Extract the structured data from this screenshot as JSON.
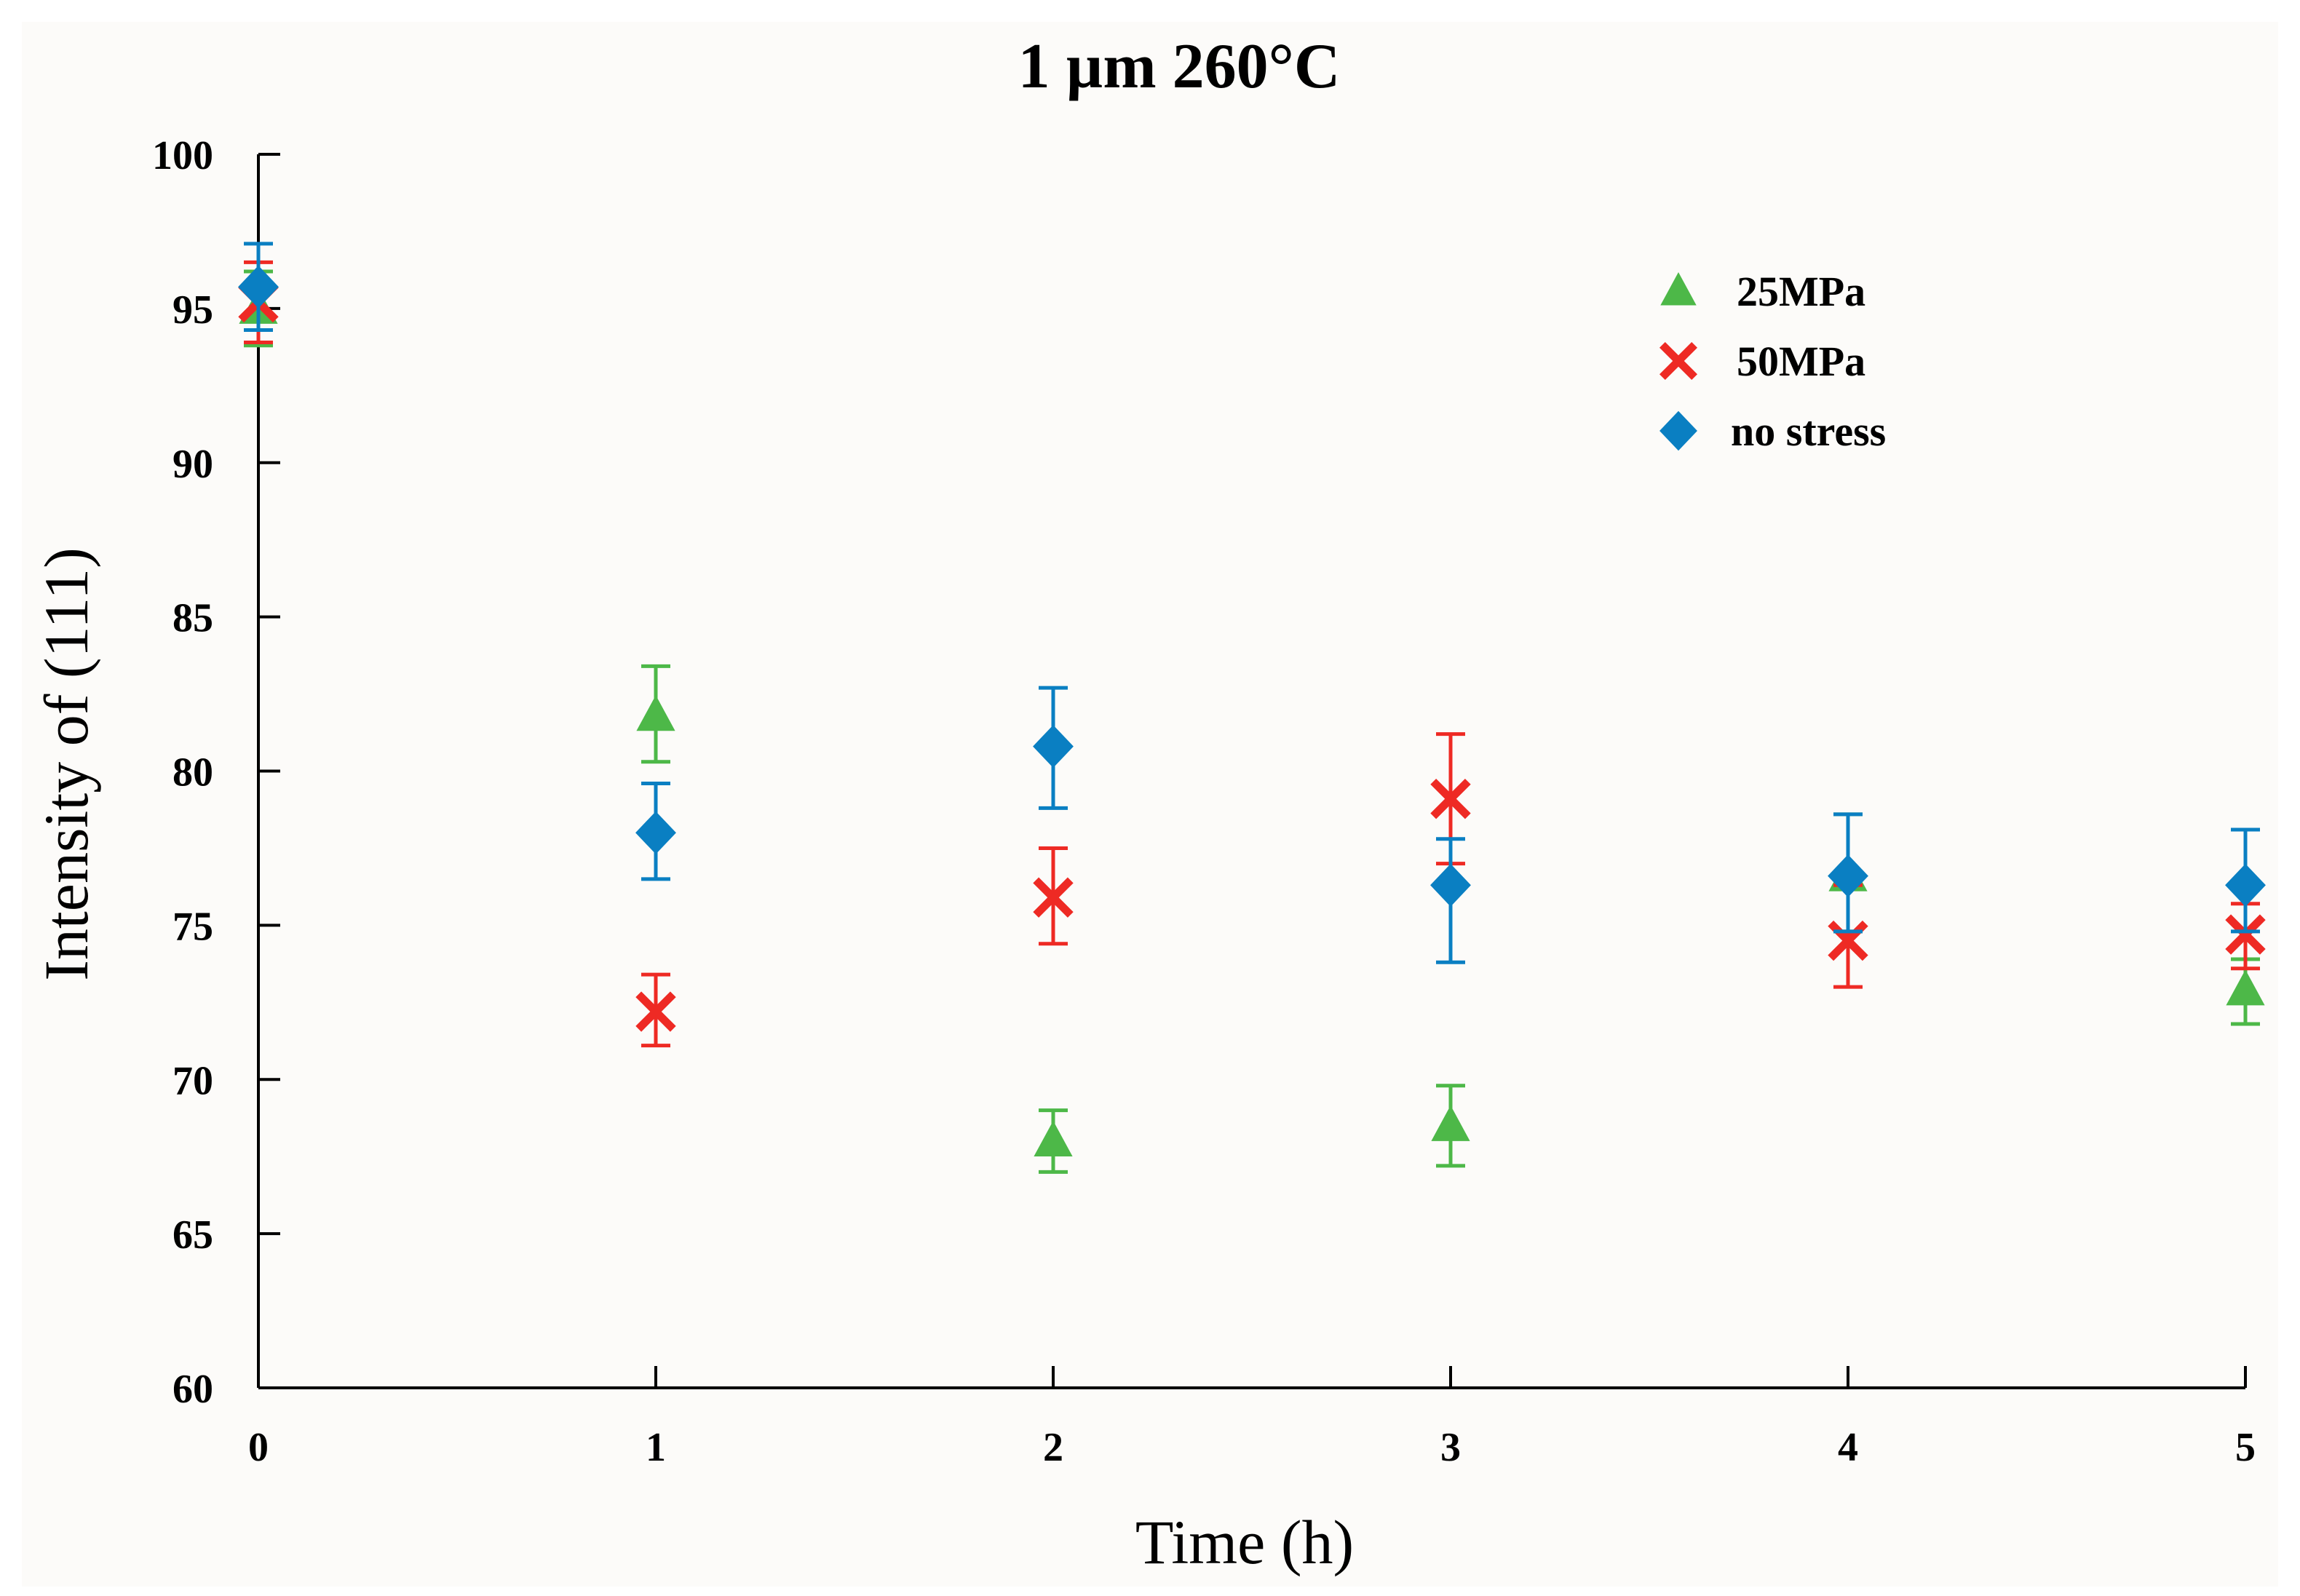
{
  "chart_data": {
    "type": "scatter",
    "title": "1 µm 260°C",
    "xlabel": "Time (h)",
    "ylabel": "Intensity of (111)",
    "xlim": [
      0,
      5
    ],
    "ylim": [
      60,
      100
    ],
    "xticks": [
      "0",
      "1",
      "2",
      "3",
      "4",
      "5"
    ],
    "yticks": [
      "60",
      "65",
      "70",
      "75",
      "80",
      "85",
      "90",
      "95",
      "100"
    ],
    "grid": false,
    "legend_position": "top-right",
    "series": [
      {
        "name": "25MPa",
        "marker": "triangle",
        "color": "#4db848",
        "x": [
          0,
          1,
          2,
          3,
          4,
          5
        ],
        "y": [
          95.0,
          81.8,
          68.0,
          68.5,
          76.6,
          72.9
        ],
        "err_high": [
          1.2,
          1.6,
          1.0,
          1.3,
          2.0,
          1.0
        ],
        "err_low": [
          1.2,
          1.5,
          1.0,
          1.3,
          1.8,
          1.1
        ]
      },
      {
        "name": "50MPa",
        "marker": "x",
        "color": "#ee2a24",
        "x": [
          0,
          1,
          2,
          3,
          4,
          5
        ],
        "y": [
          95.2,
          72.2,
          75.9,
          79.1,
          74.5,
          74.7
        ],
        "err_high": [
          1.3,
          1.2,
          1.6,
          2.1,
          1.8,
          1.0
        ],
        "err_low": [
          1.3,
          1.1,
          1.5,
          2.1,
          1.5,
          1.1
        ]
      },
      {
        "name": "no stress",
        "marker": "diamond",
        "color": "#0a7fc2",
        "x": [
          0,
          1,
          2,
          3,
          4,
          5
        ],
        "y": [
          95.7,
          78.0,
          80.8,
          76.3,
          76.6,
          76.3
        ],
        "err_high": [
          1.4,
          1.6,
          1.9,
          1.5,
          2.0,
          1.8
        ],
        "err_low": [
          1.4,
          1.5,
          2.0,
          2.5,
          1.8,
          1.5
        ]
      }
    ]
  }
}
